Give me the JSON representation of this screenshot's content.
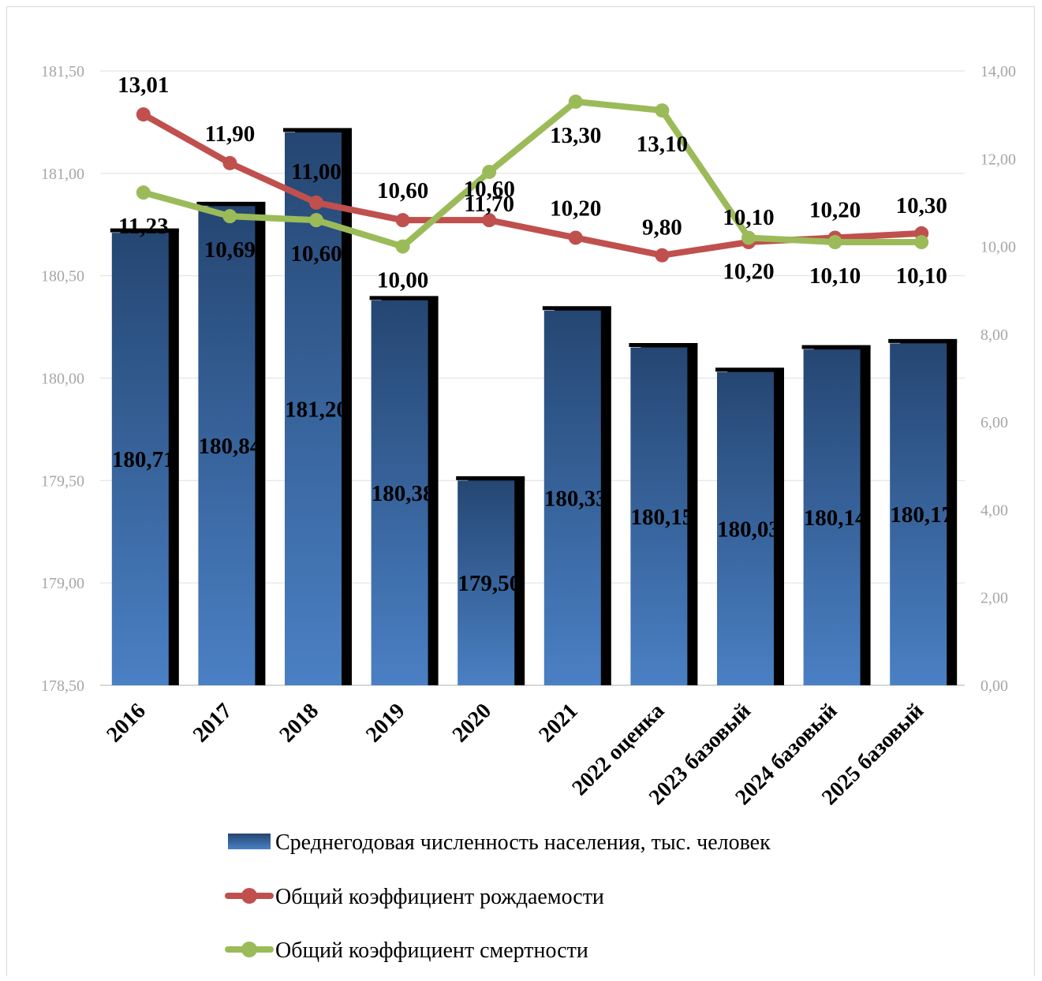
{
  "chart_data": {
    "type": "bar",
    "title": "",
    "categories": [
      "2016",
      "2017",
      "2018",
      "2019",
      "2020",
      "2021",
      "2022 оценка",
      "2023 базовый",
      "2024 базовый",
      "2025 базовый"
    ],
    "left_axis": {
      "min": 178.5,
      "max": 181.5,
      "ticks": [
        "178,50",
        "179,00",
        "179,50",
        "180,00",
        "180,50",
        "181,00",
        "181,50"
      ]
    },
    "right_axis": {
      "min": 0,
      "max": 14,
      "ticks": [
        "0,00",
        "2,00",
        "4,00",
        "6,00",
        "8,00",
        "10,00",
        "12,00",
        "14,00"
      ]
    },
    "grid": true,
    "legend_position": "bottom",
    "series": [
      {
        "name": "Среднегодовая численность населения, тыс. человек",
        "kind": "bar",
        "axis": "left",
        "color": "#4a7ebb",
        "values": [
          180.71,
          180.84,
          181.2,
          180.38,
          179.5,
          180.33,
          180.15,
          180.03,
          180.14,
          180.17
        ],
        "labels": [
          "180,71",
          "180,84",
          "181,20",
          "180,38",
          "179,50",
          "180,33",
          "180,15",
          "180,03",
          "180,14",
          "180,17"
        ]
      },
      {
        "name": "Общий коэффициент рождаемости",
        "kind": "line",
        "axis": "right",
        "color": "#c0504d",
        "values": [
          13.01,
          11.9,
          11.0,
          10.6,
          10.6,
          10.2,
          9.8,
          10.1,
          10.2,
          10.3
        ],
        "labels": [
          "13,01",
          "11,90",
          "11,00",
          "10,60",
          "10,60",
          "10,20",
          "9,80",
          "10,10",
          "10,20",
          "10,30"
        ]
      },
      {
        "name": "Общий коэффициент смертности",
        "kind": "line",
        "axis": "right",
        "color": "#9bbb59",
        "values": [
          11.23,
          10.69,
          10.6,
          10.0,
          11.7,
          13.3,
          13.1,
          10.2,
          10.1,
          10.1
        ],
        "labels": [
          "11,23",
          "10,69",
          "10,60",
          "10,00",
          "11,70",
          "13,30",
          "13,10",
          "10,20",
          "10,10",
          "10,10"
        ]
      }
    ]
  }
}
